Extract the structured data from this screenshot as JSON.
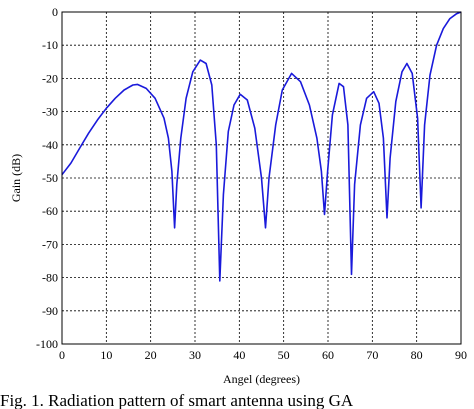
{
  "chart_data": {
    "type": "line",
    "caption": "Fig. 1. Radiation pattern of smart antenna using GA",
    "xlabel": "Angel (degrees)",
    "ylabel": "Gain (dB)",
    "xlim": [
      0,
      90
    ],
    "ylim": [
      -100,
      0
    ],
    "xticks": [
      "0",
      "10",
      "20",
      "30",
      "40",
      "50",
      "60",
      "70",
      "80",
      "90"
    ],
    "yticks": [
      "0",
      "-10",
      "-20",
      "-30",
      "-40",
      "-50",
      "-60",
      "-70",
      "-80",
      "-90",
      "-100"
    ],
    "grid": true,
    "line_color": "#1a1adb",
    "series": [
      {
        "points": [
          [
            0,
            -49
          ],
          [
            2,
            -45.5
          ],
          [
            4,
            -41
          ],
          [
            6,
            -36.5
          ],
          [
            8,
            -32.5
          ],
          [
            10,
            -29
          ],
          [
            12,
            -26
          ],
          [
            14,
            -23.5
          ],
          [
            16,
            -22
          ],
          [
            17,
            -21.8
          ],
          [
            19,
            -23
          ],
          [
            21,
            -26
          ],
          [
            23,
            -32
          ],
          [
            24,
            -38
          ],
          [
            24.8,
            -48
          ],
          [
            25.4,
            -65
          ],
          [
            25.9,
            -52
          ],
          [
            26.8,
            -38
          ],
          [
            28,
            -26
          ],
          [
            29.5,
            -18
          ],
          [
            31.2,
            -14.5
          ],
          [
            32.5,
            -15.5
          ],
          [
            33.8,
            -22
          ],
          [
            34.8,
            -40
          ],
          [
            35.6,
            -81
          ],
          [
            36.4,
            -55
          ],
          [
            37.5,
            -36
          ],
          [
            38.8,
            -28
          ],
          [
            40.2,
            -24.8
          ],
          [
            41.8,
            -26.5
          ],
          [
            43.5,
            -35
          ],
          [
            45,
            -50
          ],
          [
            45.9,
            -65
          ],
          [
            46.7,
            -50
          ],
          [
            48.2,
            -34
          ],
          [
            49.7,
            -23.5
          ],
          [
            51.8,
            -18.5
          ],
          [
            53.8,
            -21
          ],
          [
            55.8,
            -28
          ],
          [
            57.5,
            -38
          ],
          [
            58.5,
            -48
          ],
          [
            59.2,
            -61
          ],
          [
            59.9,
            -48
          ],
          [
            61,
            -31
          ],
          [
            62.5,
            -21.5
          ],
          [
            63.5,
            -22.5
          ],
          [
            64.5,
            -34
          ],
          [
            65.3,
            -79
          ],
          [
            66,
            -52
          ],
          [
            67.3,
            -34
          ],
          [
            68.7,
            -26
          ],
          [
            70.3,
            -24
          ],
          [
            71.5,
            -27.5
          ],
          [
            72.5,
            -38
          ],
          [
            73.3,
            -62
          ],
          [
            74,
            -44
          ],
          [
            75.3,
            -27
          ],
          [
            76.7,
            -18
          ],
          [
            77.8,
            -15.5
          ],
          [
            79,
            -18.5
          ],
          [
            80.2,
            -32
          ],
          [
            81,
            -59
          ],
          [
            81.8,
            -34
          ],
          [
            83,
            -19
          ],
          [
            84.5,
            -10
          ],
          [
            86,
            -5
          ],
          [
            87.5,
            -2
          ],
          [
            89,
            -0.5
          ],
          [
            90,
            0
          ]
        ]
      }
    ]
  }
}
